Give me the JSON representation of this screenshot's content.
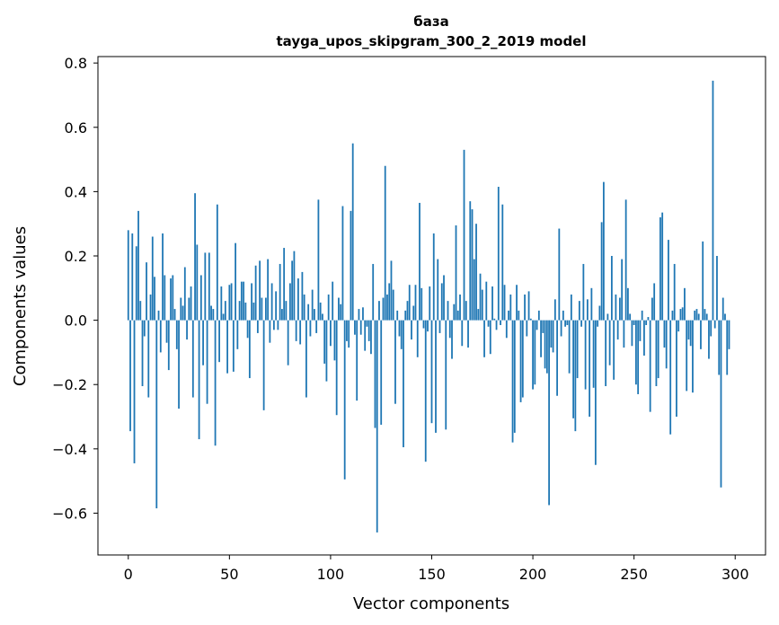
{
  "chart_data": {
    "type": "bar",
    "title": "база",
    "subtitle": "tayga_upos_skipgram_300_2_2019 model",
    "xlabel": "Vector components",
    "ylabel": "Components values",
    "xlim": [
      -15,
      315
    ],
    "ylim": [
      -0.73,
      0.82
    ],
    "xticks": [
      0,
      50,
      100,
      150,
      200,
      250,
      300
    ],
    "yticks": [
      -0.6,
      -0.4,
      -0.2,
      0.0,
      0.2,
      0.4,
      0.6,
      0.8
    ],
    "xtick_labels": [
      "0",
      "50",
      "100",
      "150",
      "200",
      "250",
      "300"
    ],
    "ytick_labels": [
      "−0.6",
      "−0.4",
      "−0.2",
      "0.0",
      "0.2",
      "0.4",
      "0.6",
      "0.8"
    ],
    "bar_color": "#1f77b4",
    "values": [
      0.28,
      -0.345,
      0.27,
      -0.445,
      0.23,
      0.34,
      0.06,
      -0.205,
      -0.05,
      0.18,
      -0.24,
      0.08,
      0.26,
      0.135,
      -0.585,
      0.03,
      -0.1,
      0.27,
      0.14,
      -0.07,
      -0.155,
      0.13,
      0.14,
      0.035,
      -0.09,
      -0.275,
      0.07,
      0.045,
      0.165,
      -0.06,
      0.07,
      0.105,
      -0.24,
      0.395,
      0.235,
      -0.37,
      0.14,
      -0.14,
      0.21,
      -0.26,
      0.21,
      0.045,
      0.035,
      -0.39,
      0.36,
      -0.13,
      0.105,
      0.02,
      0.06,
      -0.165,
      0.11,
      0.115,
      -0.16,
      0.24,
      -0.09,
      0.06,
      0.12,
      0.12,
      0.055,
      -0.055,
      -0.18,
      0.115,
      0.055,
      0.17,
      -0.04,
      0.185,
      0.07,
      -0.28,
      0.07,
      0.19,
      -0.07,
      0.115,
      -0.03,
      0.09,
      -0.03,
      0.175,
      0.035,
      0.225,
      0.06,
      -0.14,
      0.115,
      0.185,
      0.215,
      -0.065,
      0.13,
      -0.075,
      0.15,
      0.08,
      -0.24,
      0.05,
      -0.05,
      0.095,
      0.035,
      -0.04,
      0.375,
      0.055,
      0.02,
      -0.135,
      -0.19,
      0.08,
      -0.08,
      0.12,
      -0.125,
      -0.295,
      0.07,
      0.05,
      0.355,
      -0.495,
      -0.065,
      -0.085,
      0.34,
      0.55,
      -0.045,
      -0.25,
      0.035,
      -0.045,
      0.04,
      -0.095,
      -0.02,
      -0.065,
      -0.105,
      0.175,
      -0.335,
      -0.66,
      0.06,
      -0.325,
      0.07,
      0.48,
      0.08,
      0.115,
      0.185,
      0.095,
      -0.26,
      0.03,
      -0.05,
      -0.09,
      -0.395,
      0.03,
      0.06,
      0.11,
      -0.06,
      0.045,
      0.11,
      -0.115,
      0.365,
      0.1,
      -0.025,
      -0.44,
      -0.035,
      0.105,
      -0.32,
      0.27,
      -0.35,
      0.19,
      -0.04,
      0.115,
      0.14,
      -0.34,
      0.06,
      -0.055,
      -0.12,
      0.05,
      0.295,
      0.03,
      0.08,
      -0.08,
      0.53,
      0.06,
      -0.085,
      0.37,
      0.345,
      0.19,
      0.3,
      0.035,
      0.145,
      0.095,
      -0.115,
      0.12,
      -0.02,
      -0.105,
      0.105,
      0.005,
      -0.03,
      0.415,
      -0.015,
      0.36,
      0.11,
      -0.055,
      0.03,
      0.08,
      -0.38,
      -0.35,
      0.11,
      0.03,
      -0.255,
      -0.24,
      0.08,
      -0.05,
      0.09,
      0.005,
      -0.215,
      -0.2,
      -0.03,
      0.03,
      -0.115,
      -0.04,
      -0.15,
      -0.165,
      -0.575,
      -0.085,
      -0.1,
      0.065,
      -0.235,
      0.285,
      -0.05,
      0.03,
      -0.02,
      -0.015,
      -0.165,
      0.08,
      -0.305,
      -0.345,
      -0.18,
      0.06,
      -0.02,
      0.175,
      -0.215,
      0.065,
      -0.3,
      0.1,
      -0.21,
      -0.45,
      -0.02,
      0.045,
      0.305,
      0.43,
      -0.205,
      0.02,
      -0.14,
      0.2,
      -0.185,
      0.08,
      -0.06,
      0.07,
      0.19,
      -0.085,
      0.375,
      0.1,
      0.02,
      -0.08,
      -0.015,
      -0.2,
      -0.23,
      -0.065,
      0.03,
      -0.11,
      -0.015,
      0.01,
      -0.285,
      0.07,
      0.115,
      -0.205,
      -0.18,
      0.32,
      0.335,
      -0.085,
      -0.15,
      0.25,
      -0.355,
      0.03,
      0.175,
      -0.3,
      -0.035,
      0.035,
      0.04,
      0.1,
      -0.22,
      -0.06,
      -0.08,
      -0.225,
      0.03,
      0.035,
      0.02,
      -0.09,
      0.245,
      0.035,
      0.02,
      -0.12,
      -0.05,
      0.745,
      -0.025,
      0.2,
      -0.17,
      -0.52,
      0.07,
      0.02,
      -0.17,
      -0.09
    ]
  }
}
